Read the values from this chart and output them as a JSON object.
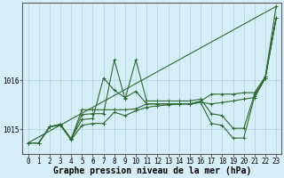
{
  "title": "",
  "xlabel": "Graphe pression niveau de la mer (hPa)",
  "background_color": "#d6eef8",
  "grid_color": "#b0d0e0",
  "line_color": "#2d6a2d",
  "ylim": [
    1014.5,
    1017.6
  ],
  "yticks": [
    1015,
    1016
  ],
  "xlim": [
    -0.5,
    23.5
  ],
  "xticks": [
    0,
    1,
    2,
    3,
    4,
    5,
    6,
    7,
    8,
    9,
    10,
    11,
    12,
    13,
    14,
    15,
    16,
    17,
    18,
    19,
    20,
    21,
    22,
    23
  ],
  "series": [
    [
      1014.72,
      1014.72,
      1015.05,
      1015.08,
      1014.78,
      1015.08,
      1015.12,
      1015.12,
      1015.35,
      1015.28,
      1015.38,
      1015.45,
      1015.48,
      1015.5,
      1015.52,
      1015.52,
      1015.55,
      1015.52,
      1015.55,
      1015.58,
      1015.62,
      1015.65,
      1016.05,
      1017.28
    ],
    [
      1014.72,
      1014.72,
      1015.05,
      1015.1,
      1014.8,
      1015.2,
      1015.22,
      1016.05,
      1015.8,
      1015.65,
      1015.78,
      1015.52,
      1015.52,
      1015.52,
      1015.52,
      1015.52,
      1015.55,
      1015.12,
      1015.08,
      1014.82,
      1014.82,
      1015.68,
      1016.05,
      1017.28
    ],
    [
      1014.72,
      1014.72,
      1015.05,
      1015.1,
      1014.8,
      1015.3,
      1015.32,
      1015.32,
      1016.42,
      1015.62,
      1016.42,
      1015.58,
      1015.58,
      1015.58,
      1015.58,
      1015.58,
      1015.62,
      1015.32,
      1015.28,
      1015.02,
      1015.02,
      1015.72,
      1016.08,
      1017.52
    ],
    [
      1014.72,
      1014.72,
      1015.05,
      1015.1,
      1014.8,
      1015.4,
      1015.4,
      1015.4,
      1015.4,
      1015.4,
      1015.42,
      1015.52,
      1015.52,
      1015.52,
      1015.52,
      1015.52,
      1015.58,
      1015.72,
      1015.72,
      1015.72,
      1015.75,
      1015.75,
      1016.08,
      1017.28
    ]
  ],
  "straight_line": [
    1014.72,
    1017.52
  ],
  "straight_line_x": [
    0,
    23
  ],
  "marker": "+",
  "markersize": 3,
  "linewidth": 0.8,
  "tick_fontsize": 5.5,
  "xlabel_fontsize": 7,
  "xlabel_bold": true
}
